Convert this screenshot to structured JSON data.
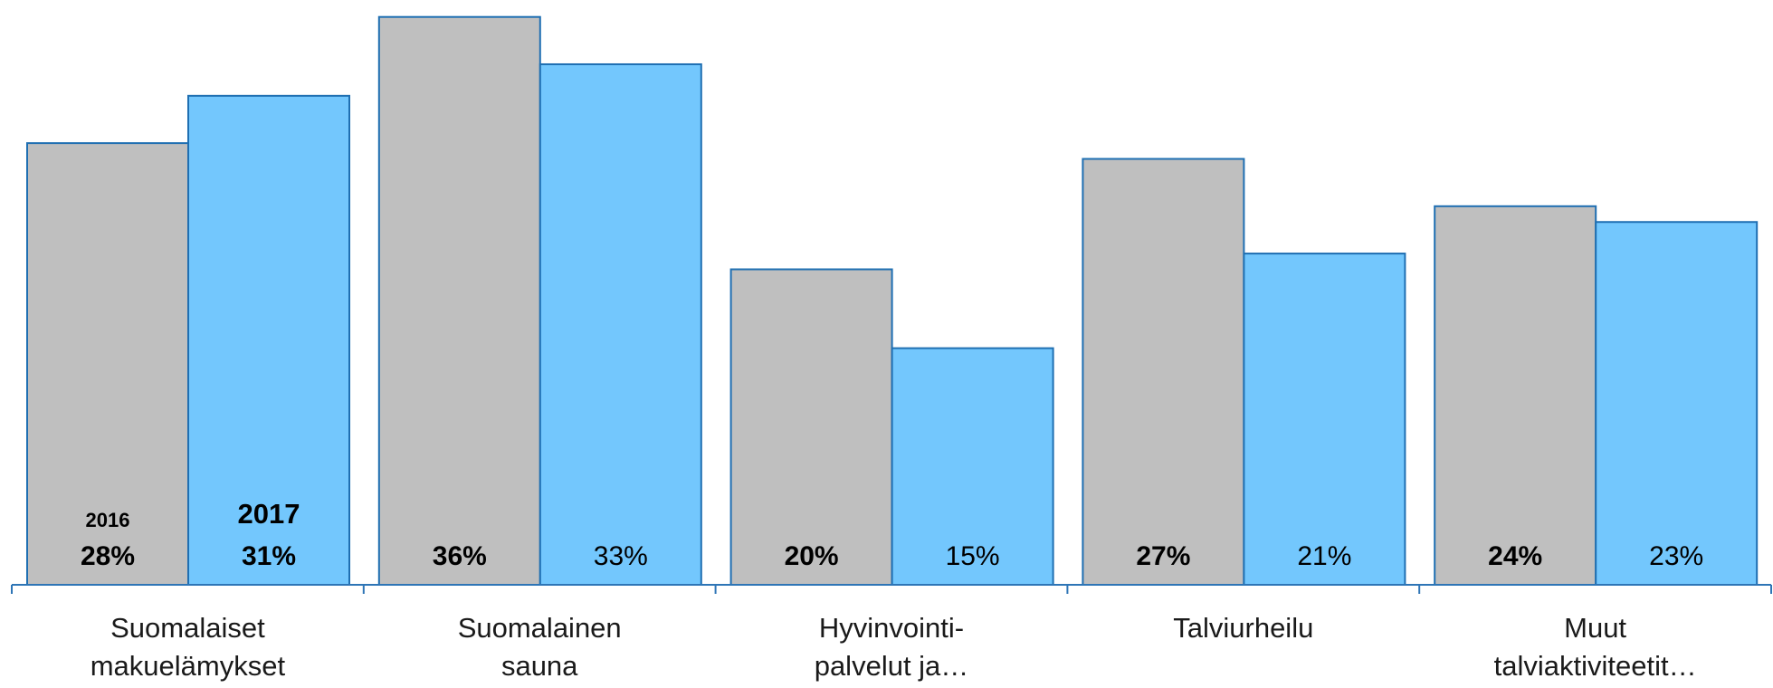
{
  "chart_data": {
    "type": "bar",
    "categories": [
      [
        "Suomalaiset",
        "makuelämykset"
      ],
      [
        "Suomalainen",
        "sauna"
      ],
      [
        "Hyvinvointi-",
        "palvelut ja…"
      ],
      [
        "Talviurheilu"
      ],
      [
        "Muut",
        "talviaktiviteetit…"
      ]
    ],
    "series": [
      {
        "name": "2016",
        "color": "#bfbfbf",
        "values": [
          28,
          36,
          20,
          27,
          24
        ],
        "labels": [
          "28%",
          "36%",
          "20%",
          "27%",
          "24%"
        ],
        "bold_labels": true
      },
      {
        "name": "2017",
        "color": "#73c7fd",
        "values": [
          31,
          33,
          15,
          21,
          23
        ],
        "labels": [
          "31%",
          "33%",
          "15%",
          "21%",
          "23%"
        ],
        "bold_labels": false
      }
    ],
    "bold_first_category_all_series": true,
    "bar_outline_color": "#1f6fb2",
    "axis_color": "#2e75b6",
    "ylim": [
      0,
      36.5
    ],
    "legend": "inside first category bars",
    "grid": false,
    "title": "",
    "xlabel": "",
    "ylabel": ""
  }
}
